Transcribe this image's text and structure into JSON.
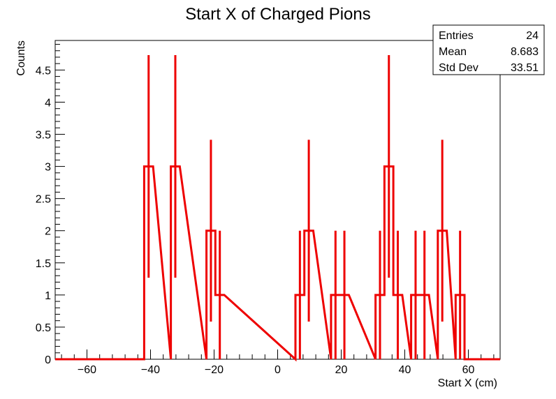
{
  "chart_data": {
    "type": "histogram",
    "title": "Start X of Charged Pions",
    "xlabel": "Start X (cm)",
    "ylabel": "Counts",
    "xlim": [
      -70,
      70
    ],
    "ylim": [
      0,
      4.96
    ],
    "x_ticks": [
      -60,
      -40,
      -20,
      0,
      20,
      40,
      60
    ],
    "x_tick_labels": [
      "−60",
      "−40",
      "−20",
      "0",
      "20",
      "40",
      "60"
    ],
    "y_ticks": [
      0,
      0.5,
      1,
      1.5,
      2,
      2.5,
      3,
      3.5,
      4,
      4.5
    ],
    "y_tick_labels": [
      "0",
      "0.5",
      "1",
      "1.5",
      "2",
      "2.5",
      "3",
      "3.5",
      "4",
      "4.5"
    ],
    "line_color": "#ee0000",
    "error_bars": "sqrt(N)",
    "bins": [
      {
        "low": -42,
        "high": -39.2,
        "count": 3
      },
      {
        "low": -33.6,
        "high": -30.8,
        "count": 3
      },
      {
        "low": -22.4,
        "high": -19.6,
        "count": 2
      },
      {
        "low": -19.6,
        "high": -16.8,
        "count": 1
      },
      {
        "low": 5.6,
        "high": 8.4,
        "count": 1
      },
      {
        "low": 8.4,
        "high": 11.2,
        "count": 2
      },
      {
        "low": 16.8,
        "high": 19.6,
        "count": 1
      },
      {
        "low": 19.6,
        "high": 22.4,
        "count": 1
      },
      {
        "low": 30.8,
        "high": 33.6,
        "count": 1
      },
      {
        "low": 33.6,
        "high": 36.4,
        "count": 3
      },
      {
        "low": 36.4,
        "high": 39.2,
        "count": 1
      },
      {
        "low": 42.0,
        "high": 44.8,
        "count": 1
      },
      {
        "low": 44.8,
        "high": 47.6,
        "count": 1
      },
      {
        "low": 50.4,
        "high": 53.2,
        "count": 2
      },
      {
        "low": 56.0,
        "high": 58.8,
        "count": 1
      }
    ],
    "stats": {
      "entries_label": "Entries",
      "entries": "24",
      "mean_label": "Mean",
      "mean": "8.683",
      "stddev_label": "Std Dev",
      "stddev": "33.51"
    }
  }
}
